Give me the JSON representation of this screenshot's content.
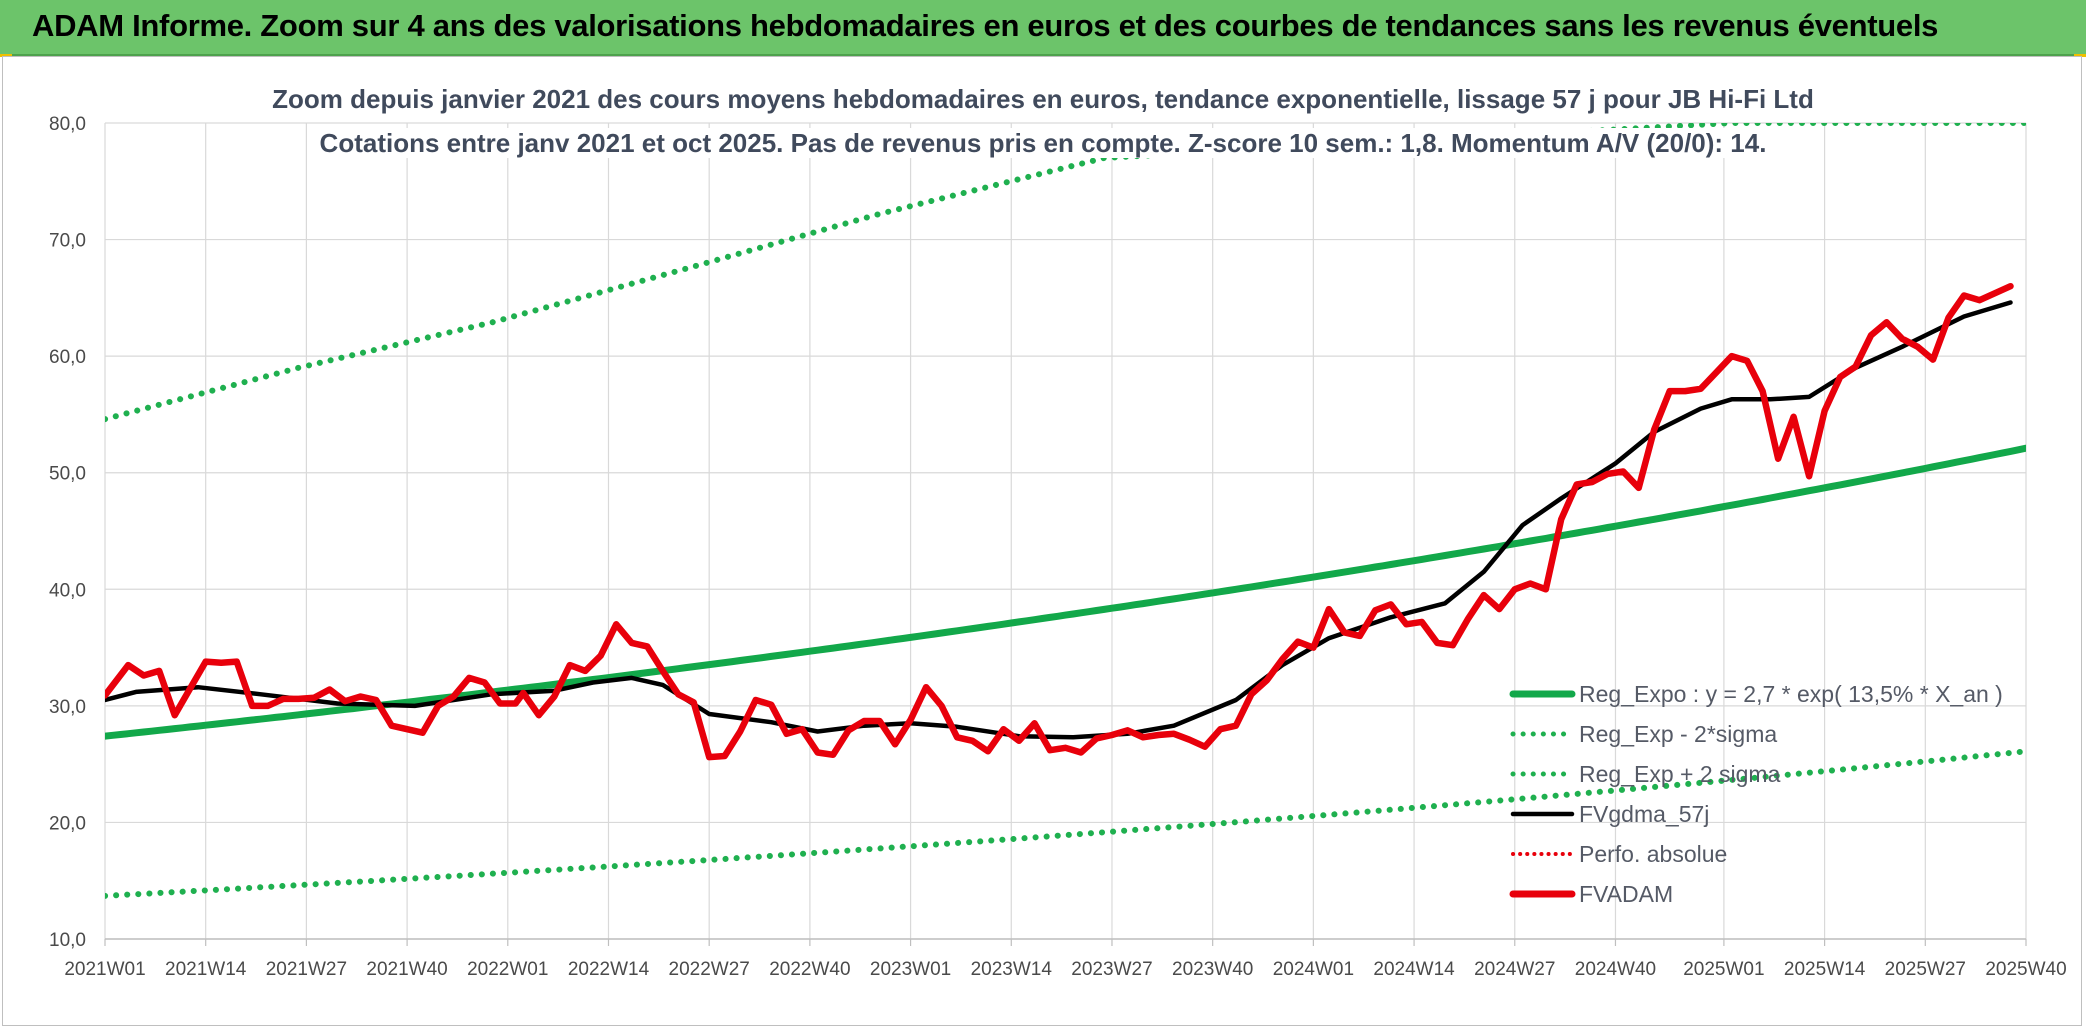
{
  "header": {
    "title": "ADAM Informe. Zoom sur 4 ans des valorisations hebdomadaires en euros et des courbes de tendances sans les revenus éventuels"
  },
  "colors": {
    "header_bg": "#6cc46a",
    "trend_green": "#12a84a",
    "sigma_green": "#1fb04f",
    "price_red": "#e8000b",
    "smooth_black": "#000000",
    "perf_red": "#e8000b"
  },
  "chart_data": {
    "type": "line",
    "subtitle_line1": "Zoom depuis janvier 2021 des cours moyens hebdomadaires en euros, tendance exponentielle, lissage 57 j pour JB Hi-Fi Ltd",
    "subtitle_line2": "Cotations entre janv 2021 et oct 2025. Pas de revenus pris en compte. Z-score 10 sem.: 1,8. Momentum A/V (20/0): 14.",
    "ylim": [
      10,
      80
    ],
    "yticks": [
      "10,0",
      "20,0",
      "30,0",
      "40,0",
      "50,0",
      "60,0",
      "70,0",
      "80,0"
    ],
    "ytick_values": [
      10,
      20,
      30,
      40,
      50,
      60,
      70,
      80
    ],
    "x_range_weeks": [
      0,
      246
    ],
    "xticks": [
      "2021W01",
      "2021W14",
      "2021W27",
      "2021W40",
      "2022W01",
      "2022W14",
      "2022W27",
      "2022W40",
      "2023W01",
      "2023W14",
      "2023W27",
      "2023W40",
      "2024W01",
      "2024W14",
      "2024W27",
      "2024W40",
      "2025W01",
      "2025W14",
      "2025W27",
      "2025W40"
    ],
    "xtick_weeks": [
      0,
      13,
      26,
      39,
      52,
      65,
      78,
      91,
      104,
      117,
      130,
      143,
      156,
      169,
      182,
      195,
      209,
      222,
      235,
      248
    ],
    "legend": [
      {
        "key": "trend",
        "label": "Reg_Expo : y = 2,7 * exp( 13,5% *  X_an )",
        "style": "solid-green"
      },
      {
        "key": "lower",
        "label": "Reg_Exp - 2*sigma",
        "style": "dotted-green"
      },
      {
        "key": "upper",
        "label": "Reg_Exp + 2 sigma",
        "style": "dotted-green"
      },
      {
        "key": "smooth",
        "label": "FVgdma_57j",
        "style": "solid-black"
      },
      {
        "key": "perf",
        "label": "Perfo. absolue",
        "style": "dotted-red"
      },
      {
        "key": "price",
        "label": "FVADAM",
        "style": "solid-red"
      }
    ],
    "series": [
      {
        "name": "Reg_Expo",
        "x": [
          0,
          50,
          100,
          150,
          200,
          248
        ],
        "values": [
          27.4,
          31.5,
          35.8,
          40.7,
          46.3,
          52.1
        ]
      },
      {
        "name": "Reg_Exp - 2*sigma",
        "x": [
          0,
          50,
          100,
          150,
          200,
          248
        ],
        "values": [
          13.7,
          15.6,
          17.8,
          20.3,
          23.1,
          26.1
        ]
      },
      {
        "name": "Reg_Exp + 2 sigma",
        "x": [
          0,
          25,
          50,
          75,
          100,
          129,
          210,
          248
        ],
        "values": [
          54.6,
          59.0,
          62.9,
          67.5,
          72.2,
          77.0,
          80.0,
          80.0
        ]
      },
      {
        "name": "FVgdma_57j",
        "x": [
          0,
          4,
          12,
          20,
          30,
          40,
          50,
          58,
          63,
          68,
          72,
          78,
          86,
          92,
          98,
          104,
          110,
          118,
          125,
          132,
          138,
          146,
          152,
          158,
          166,
          173,
          178,
          183,
          188,
          195,
          200,
          206,
          210,
          215,
          220,
          226,
          232,
          240,
          246
        ],
        "values": [
          30.5,
          31.2,
          31.6,
          31.0,
          30.2,
          30.0,
          31.0,
          31.3,
          32.0,
          32.4,
          31.8,
          29.3,
          28.6,
          27.8,
          28.3,
          28.5,
          28.2,
          27.4,
          27.3,
          27.6,
          28.3,
          30.5,
          33.5,
          35.8,
          37.6,
          38.8,
          41.5,
          45.5,
          47.8,
          50.8,
          53.5,
          55.5,
          56.3,
          56.3,
          56.5,
          59.0,
          60.8,
          63.4,
          64.6
        ]
      },
      {
        "name": "FVADAM",
        "x": [
          0,
          3,
          5,
          7,
          9,
          11,
          13,
          15,
          17,
          19,
          21,
          23,
          25,
          27,
          29,
          31,
          33,
          35,
          37,
          39,
          41,
          43,
          45,
          47,
          49,
          51,
          53,
          54,
          56,
          58,
          60,
          62,
          64,
          66,
          68,
          70,
          72,
          74,
          76,
          78,
          80,
          82,
          84,
          86,
          88,
          90,
          92,
          94,
          96,
          98,
          100,
          102,
          104,
          106,
          108,
          110,
          112,
          114,
          116,
          118,
          120,
          122,
          124,
          126,
          128,
          130,
          132,
          134,
          136,
          138,
          140,
          142,
          144,
          146,
          148,
          150,
          152,
          154,
          156,
          158,
          160,
          162,
          164,
          166,
          168,
          170,
          172,
          174,
          176,
          178,
          180,
          182,
          184,
          186,
          188,
          190,
          192,
          194,
          196,
          198,
          200,
          202,
          204,
          206,
          208,
          210,
          212,
          214,
          216,
          218,
          220,
          222,
          224,
          226,
          228,
          230,
          232,
          234,
          236,
          238,
          240,
          242,
          244,
          246
        ],
        "values": [
          30.9,
          33.5,
          32.6,
          33.0,
          29.2,
          31.5,
          33.8,
          33.7,
          33.8,
          30.0,
          30.0,
          30.6,
          30.6,
          30.7,
          31.4,
          30.4,
          30.8,
          30.5,
          28.3,
          28.0,
          27.7,
          30.0,
          30.8,
          32.4,
          32.0,
          30.2,
          30.2,
          31.1,
          29.2,
          30.8,
          33.5,
          33.0,
          34.3,
          37.0,
          35.4,
          35.1,
          33.0,
          31.0,
          30.3,
          25.6,
          25.7,
          27.8,
          30.5,
          30.1,
          27.6,
          28.0,
          26.0,
          25.8,
          27.9,
          28.7,
          28.7,
          26.7,
          28.8,
          31.6,
          30.0,
          27.3,
          27.0,
          26.1,
          28.0,
          27.0,
          28.5,
          26.2,
          26.4,
          26.0,
          27.2,
          27.5,
          27.9,
          27.3,
          27.5,
          27.6,
          27.1,
          26.5,
          28.0,
          28.3,
          31.0,
          32.2,
          34.0,
          35.5,
          35.0,
          38.3,
          36.3,
          36.0,
          38.2,
          38.7,
          37.0,
          37.2,
          35.4,
          35.2,
          37.5,
          39.5,
          38.3,
          40.0,
          40.5,
          40.0,
          46.0,
          49.0,
          49.2,
          49.9,
          50.1,
          48.7,
          53.7,
          57.0,
          57.0,
          57.2,
          58.6,
          60.0,
          59.6,
          57.0,
          51.2,
          54.8,
          49.7,
          55.3,
          58.2,
          59.1,
          61.8,
          62.9,
          61.5,
          60.8,
          59.7,
          63.3,
          65.2,
          64.8,
          65.4,
          66.0
        ]
      }
    ]
  }
}
